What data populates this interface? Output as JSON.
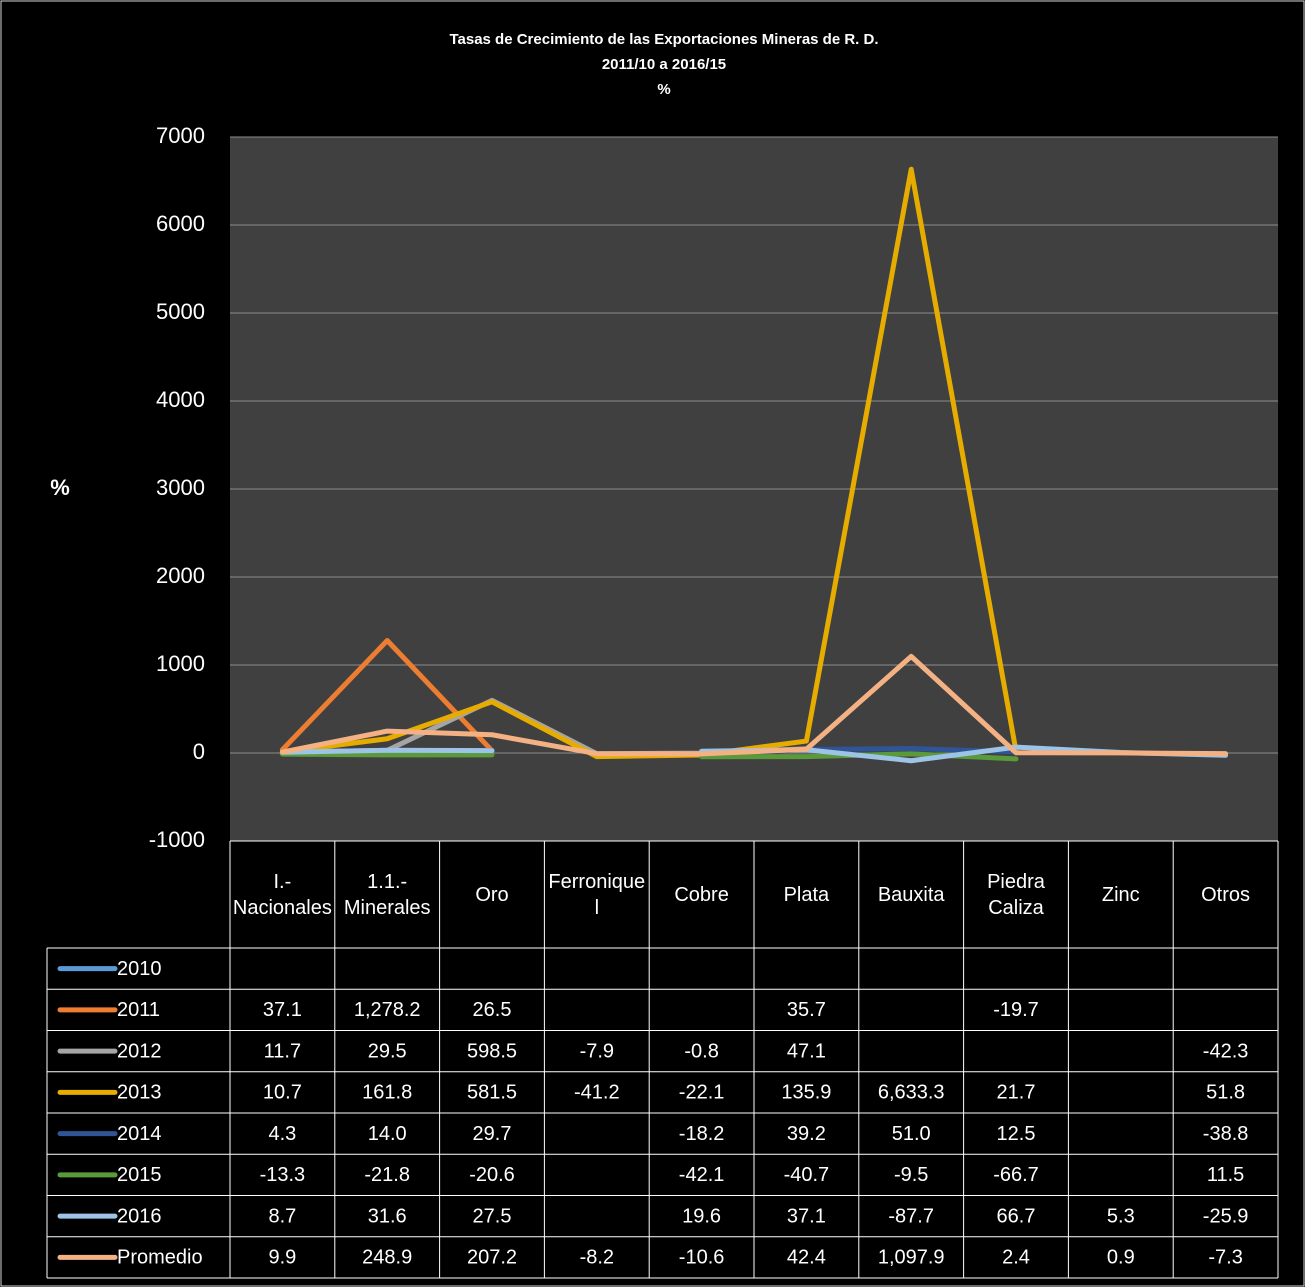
{
  "chart_data": {
    "type": "line",
    "title": "Tasas de Crecimiento de las Exportaciones Mineras de R. D.",
    "subtitle": "2011/10  a 2016/15",
    "unit_title": "%",
    "y_label": "%",
    "categories": [
      "I.- Nacionales",
      "1.1.- Minerales",
      "Oro",
      "Ferroniquel",
      "Cobre",
      "Plata",
      "Bauxita",
      "Piedra Caliza",
      "Zinc",
      "Otros"
    ],
    "ylim": [
      -1000,
      7000
    ],
    "yticks": [
      -1000,
      0,
      1000,
      2000,
      3000,
      4000,
      5000,
      6000,
      7000
    ],
    "grid": true,
    "series": [
      {
        "name": "2010",
        "color": "#5b9bd5",
        "values": [
          null,
          null,
          null,
          null,
          null,
          null,
          null,
          null,
          null,
          null
        ],
        "value_labels": [
          null,
          null,
          null,
          null,
          null,
          null,
          null,
          null,
          null,
          null
        ]
      },
      {
        "name": "2011",
        "color": "#ed7d31",
        "values": [
          37.1,
          1278.2,
          26.5,
          null,
          null,
          35.7,
          null,
          -19.7,
          null,
          null
        ],
        "value_labels": [
          "37.1",
          "1,278.2",
          "26.5",
          null,
          null,
          "35.7",
          null,
          "-19.7",
          null,
          null
        ]
      },
      {
        "name": "2012",
        "color": "#a5a5a5",
        "values": [
          11.7,
          29.5,
          598.5,
          -7.9,
          -0.8,
          47.1,
          null,
          null,
          null,
          -42.3
        ],
        "value_labels": [
          "11.7",
          "29.5",
          "598.5",
          "-7.9",
          "-0.8",
          "47.1",
          null,
          null,
          null,
          "-42.3"
        ]
      },
      {
        "name": "2013",
        "color": "#e6ac00",
        "values": [
          10.7,
          161.8,
          581.5,
          -41.2,
          -22.1,
          135.9,
          6633.3,
          21.7,
          null,
          51.8
        ],
        "value_labels": [
          "10.7",
          "161.8",
          "581.5",
          "-41.2",
          "-22.1",
          "135.9",
          "6,633.3",
          "21.7",
          null,
          "51.8"
        ]
      },
      {
        "name": "2014",
        "color": "#2f5597",
        "values": [
          4.3,
          14.0,
          29.7,
          null,
          -18.2,
          39.2,
          51.0,
          12.5,
          null,
          -38.8
        ],
        "value_labels": [
          "4.3",
          "14.0",
          "29.7",
          null,
          "-18.2",
          "39.2",
          "51.0",
          "12.5",
          null,
          "-38.8"
        ]
      },
      {
        "name": "2015",
        "color": "#5a9a3a",
        "values": [
          -13.3,
          -21.8,
          -20.6,
          null,
          -42.1,
          -40.7,
          -9.5,
          -66.7,
          null,
          11.5
        ],
        "value_labels": [
          "-13.3",
          "-21.8",
          "-20.6",
          null,
          "-42.1",
          "-40.7",
          "-9.5",
          "-66.7",
          null,
          "11.5"
        ]
      },
      {
        "name": "2016",
        "color": "#9dc3e6",
        "values": [
          8.7,
          31.6,
          27.5,
          null,
          19.6,
          37.1,
          -87.7,
          66.7,
          5.3,
          -25.9
        ],
        "value_labels": [
          "8.7",
          "31.6",
          "27.5",
          null,
          "19.6",
          "37.1",
          "-87.7",
          "66.7",
          "5.3",
          "-25.9"
        ]
      },
      {
        "name": "Promedio",
        "color": "#f4b183",
        "values": [
          9.9,
          248.9,
          207.2,
          -8.2,
          -10.6,
          42.4,
          1097.9,
          2.4,
          0.9,
          -7.3
        ],
        "value_labels": [
          "9.9",
          "248.9",
          "207.2",
          "-8.2",
          "-10.6",
          "42.4",
          "1,097.9",
          "2.4",
          "0.9",
          "-7.3"
        ]
      }
    ]
  }
}
